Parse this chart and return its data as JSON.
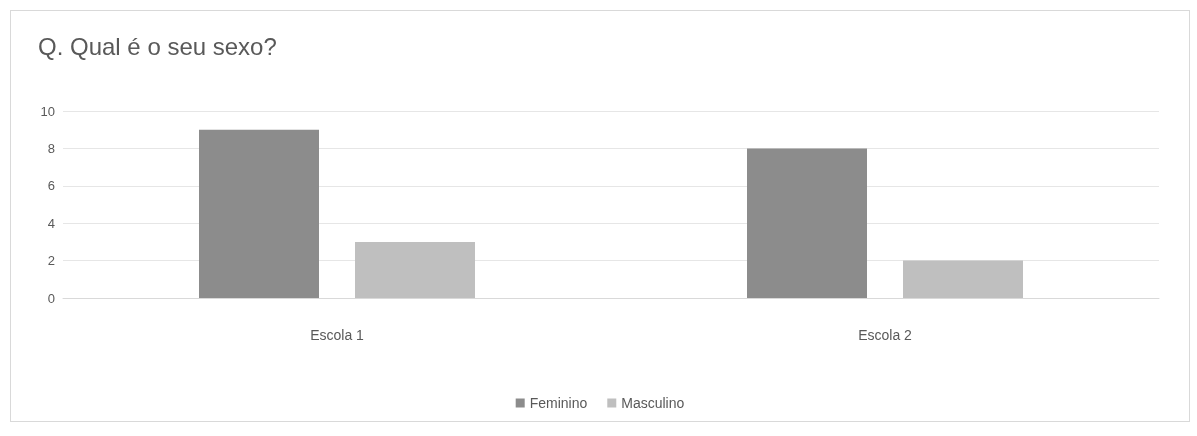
{
  "chart_data": {
    "type": "bar",
    "title": "Q. Qual é o seu sexo?",
    "categories": [
      "Escola 1",
      "Escola 2"
    ],
    "series": [
      {
        "name": "Feminino",
        "color": "#8c8c8c",
        "values": [
          9,
          8
        ]
      },
      {
        "name": "Masculino",
        "color": "#bfbfbf",
        "values": [
          3,
          2
        ]
      }
    ],
    "ylim": [
      0,
      10
    ],
    "yticks": [
      0,
      2,
      4,
      6,
      8,
      10
    ],
    "grid": "y",
    "legend": "bottom"
  }
}
